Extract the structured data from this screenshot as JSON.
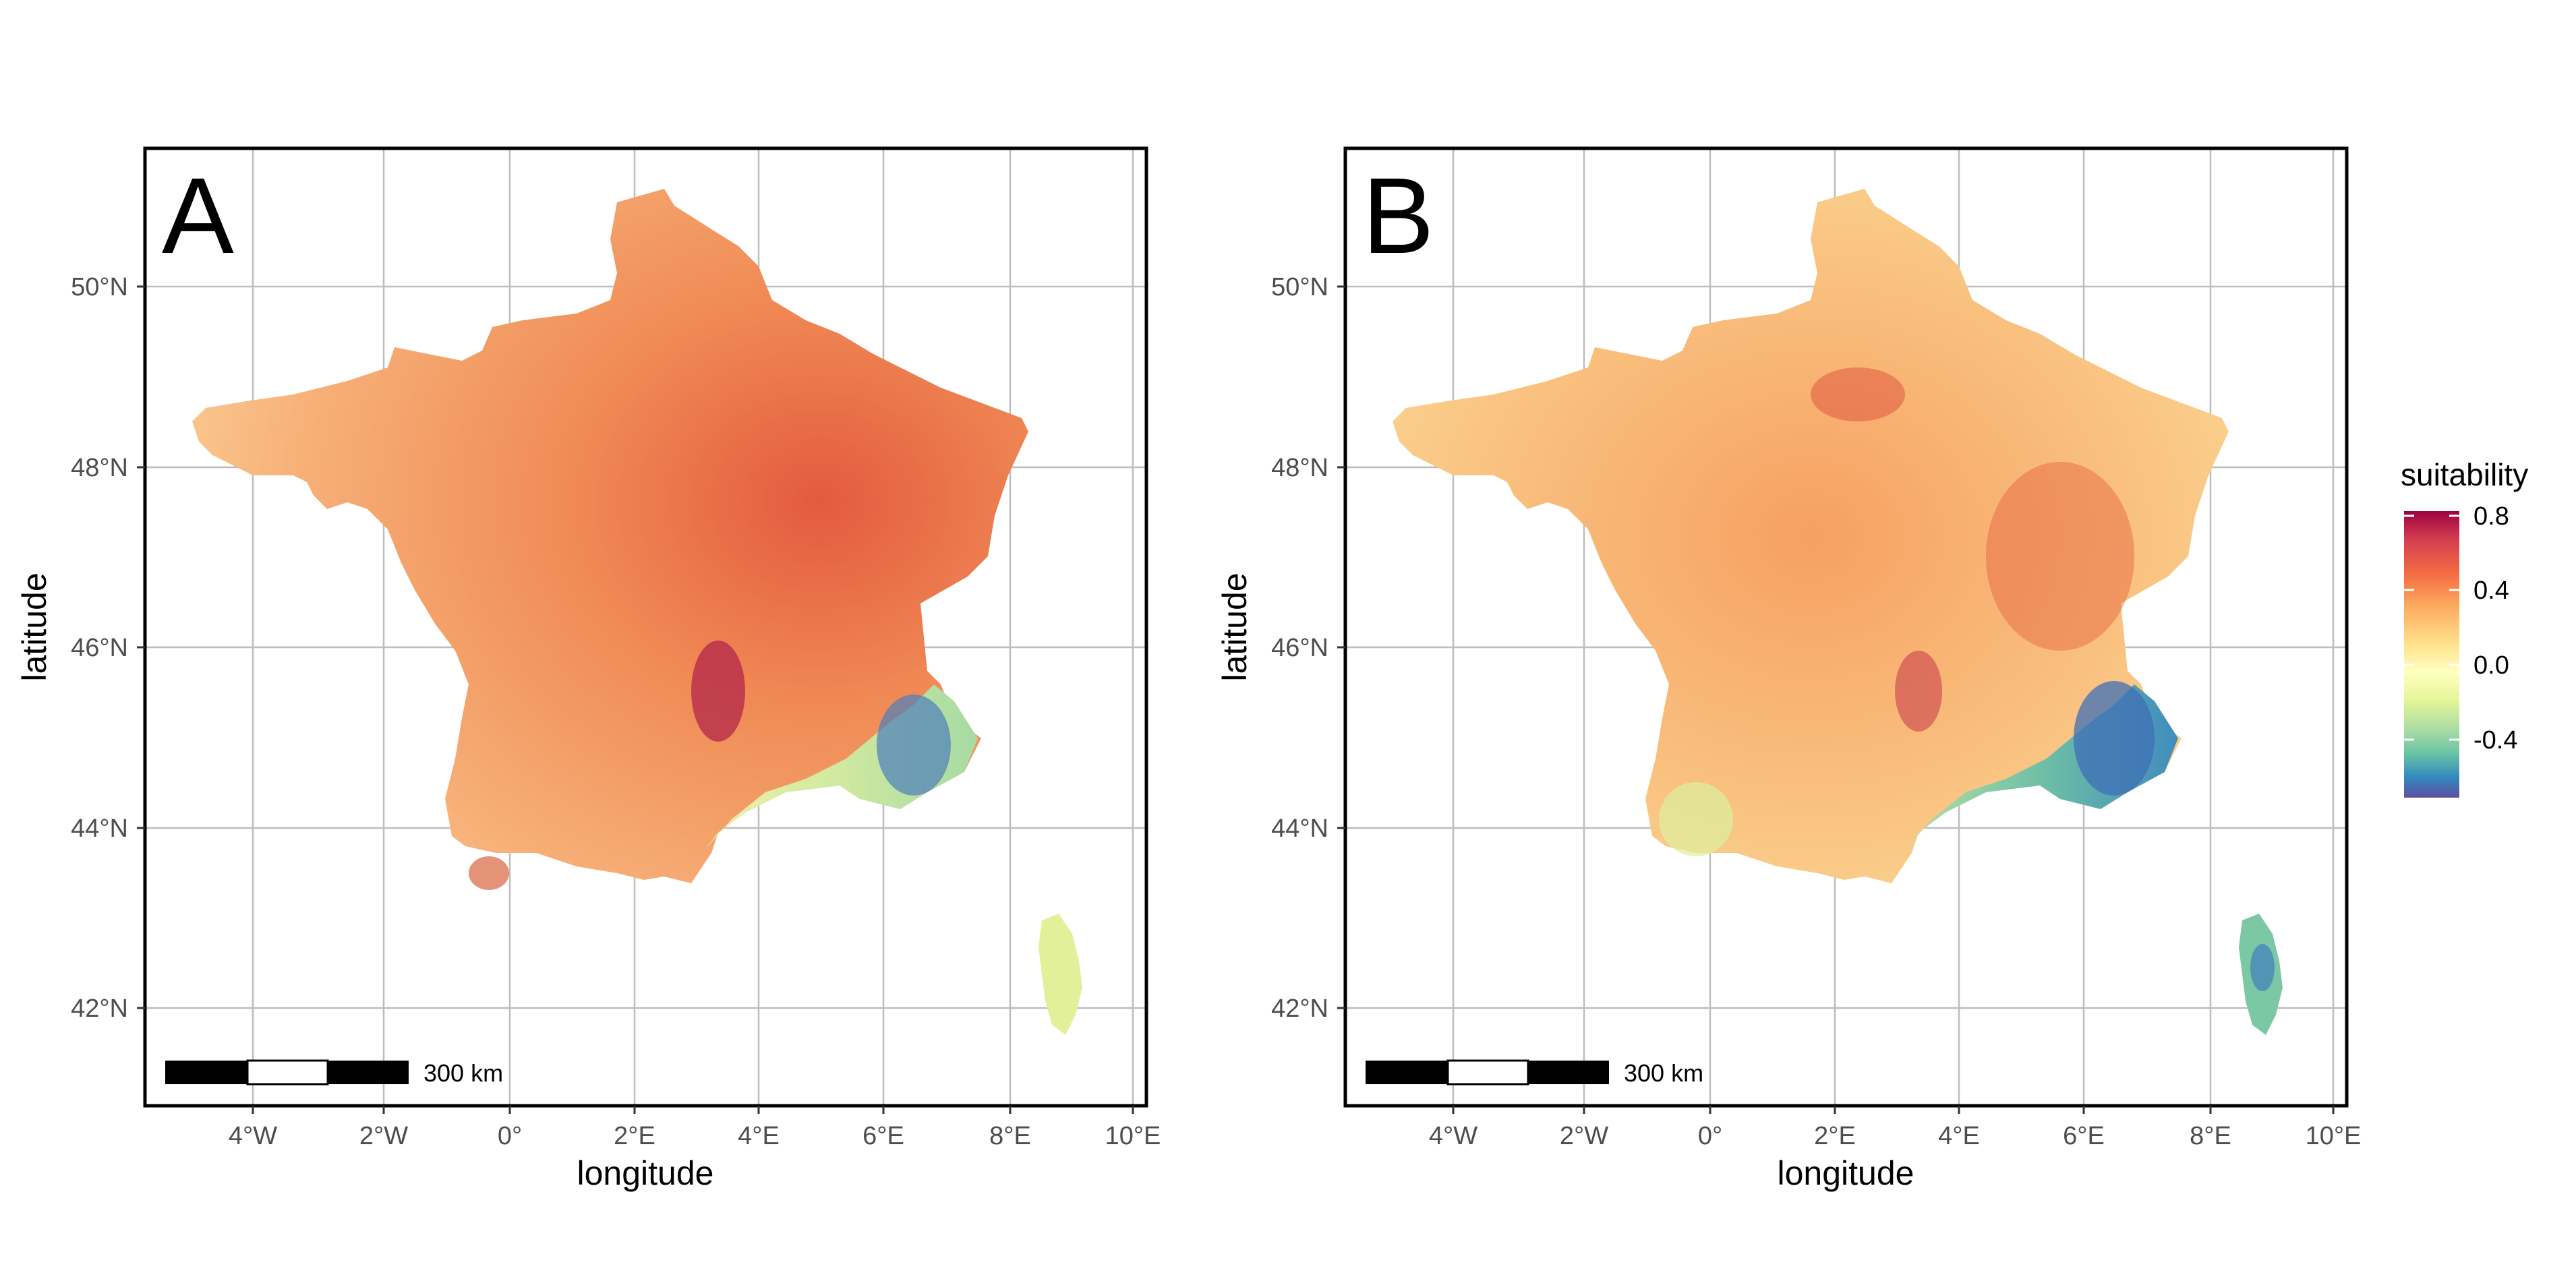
{
  "panels": [
    {
      "letter": "A",
      "xlabel": "longitude",
      "ylabel": "latitude",
      "x_ticks": [
        "4°W",
        "2°W",
        "0°",
        "2°E",
        "4°E",
        "6°E",
        "8°E",
        "10°E"
      ],
      "y_ticks": [
        "42°N",
        "44°N",
        "46°N",
        "48°N",
        "50°N"
      ],
      "scale_bar": "300 km"
    },
    {
      "letter": "B",
      "xlabel": "longitude",
      "ylabel": "latitude",
      "x_ticks": [
        "4°W",
        "2°W",
        "0°",
        "2°E",
        "4°E",
        "6°E",
        "8°E",
        "10°E"
      ],
      "y_ticks": [
        "42°N",
        "44°N",
        "46°N",
        "48°N",
        "50°N"
      ],
      "scale_bar": "300 km"
    }
  ],
  "legend": {
    "title": "suitability",
    "labels": [
      "0.8",
      "0.4",
      "0.0",
      "-0.4"
    ],
    "colors": [
      "#9e0142",
      "#d53e4f",
      "#f46d43",
      "#fdae61",
      "#fee08b",
      "#ffffbf",
      "#e6f598",
      "#abdda4",
      "#66c2a5",
      "#3288bd",
      "#5e4fa2"
    ]
  }
}
